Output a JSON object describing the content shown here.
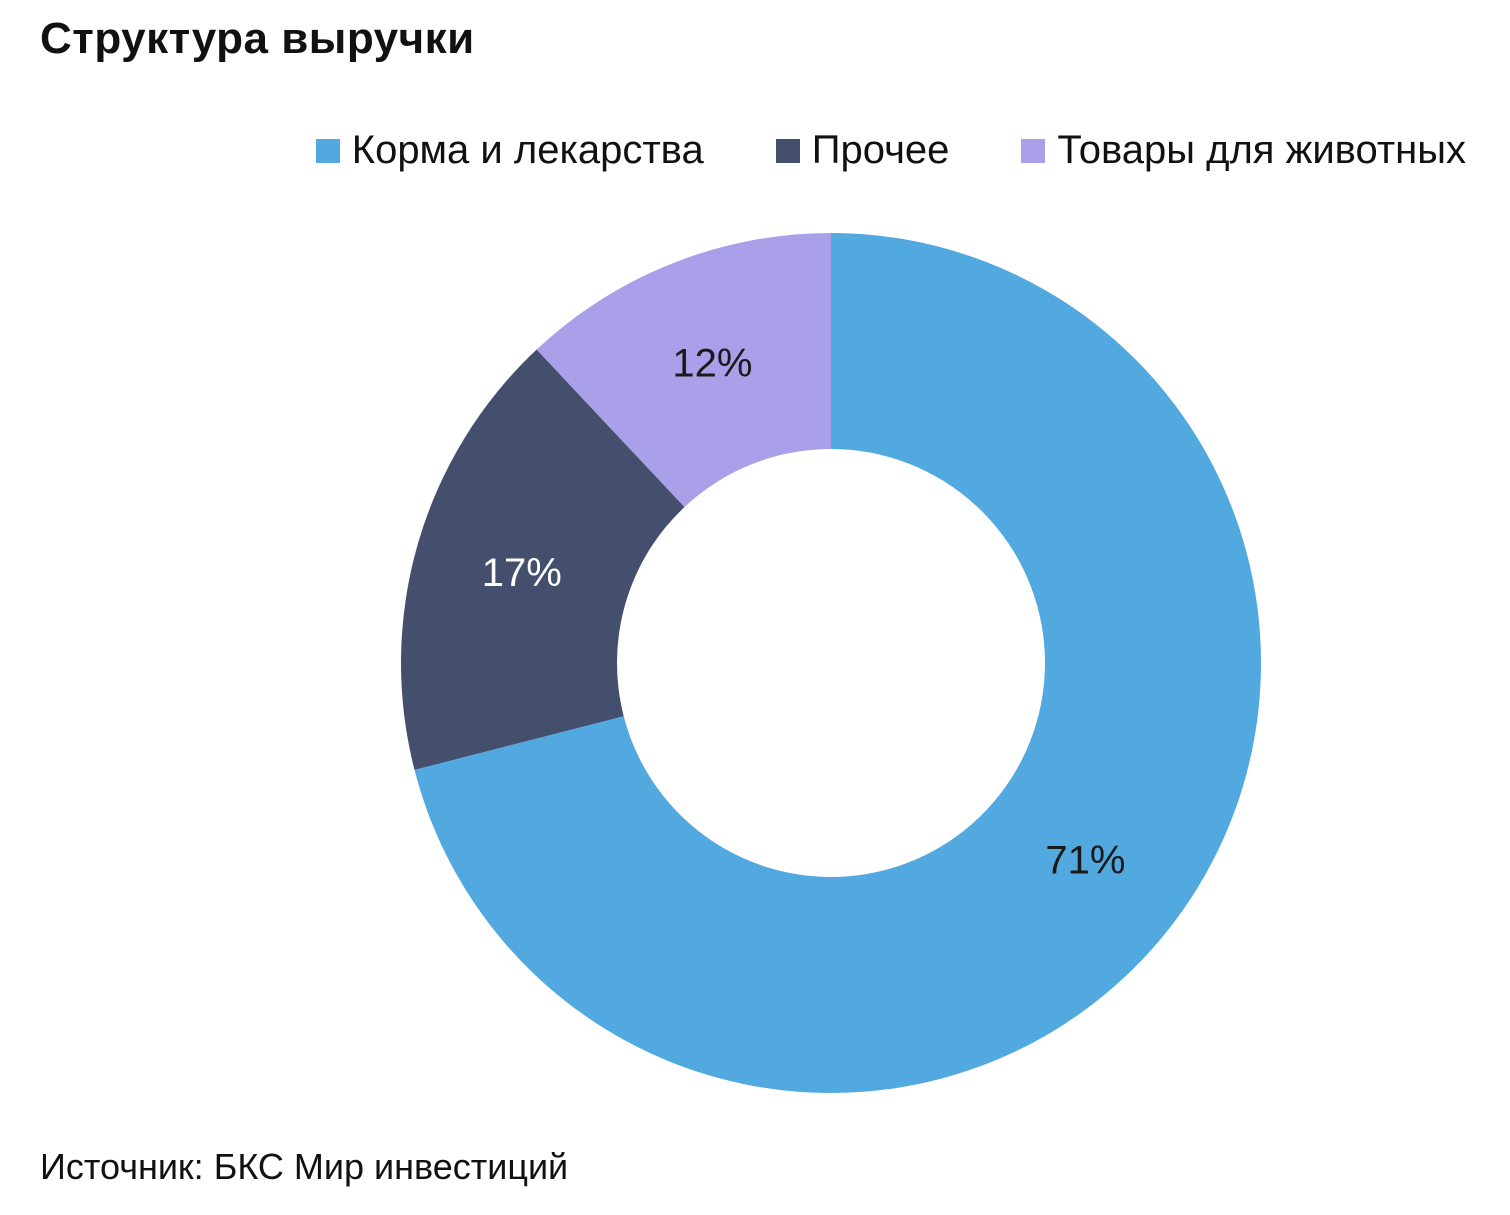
{
  "chart_data": {
    "type": "pie",
    "title": "Структура выручки",
    "series": [
      {
        "name": "Корма и лекарства",
        "value": 71,
        "label": "71%",
        "color": "#51a9e0",
        "label_color": "#1a1a1a"
      },
      {
        "name": "Прочее",
        "value": 17,
        "label": "17%",
        "color": "#444f6d",
        "label_color": "#ffffff"
      },
      {
        "name": "Товары для животных",
        "value": 12,
        "label": "12%",
        "color": "#aaa0ea",
        "label_color": "#1a1a1a"
      }
    ],
    "legend_position": "top-right",
    "donut": true
  },
  "source": "Источник: БКС Мир инвестиций"
}
